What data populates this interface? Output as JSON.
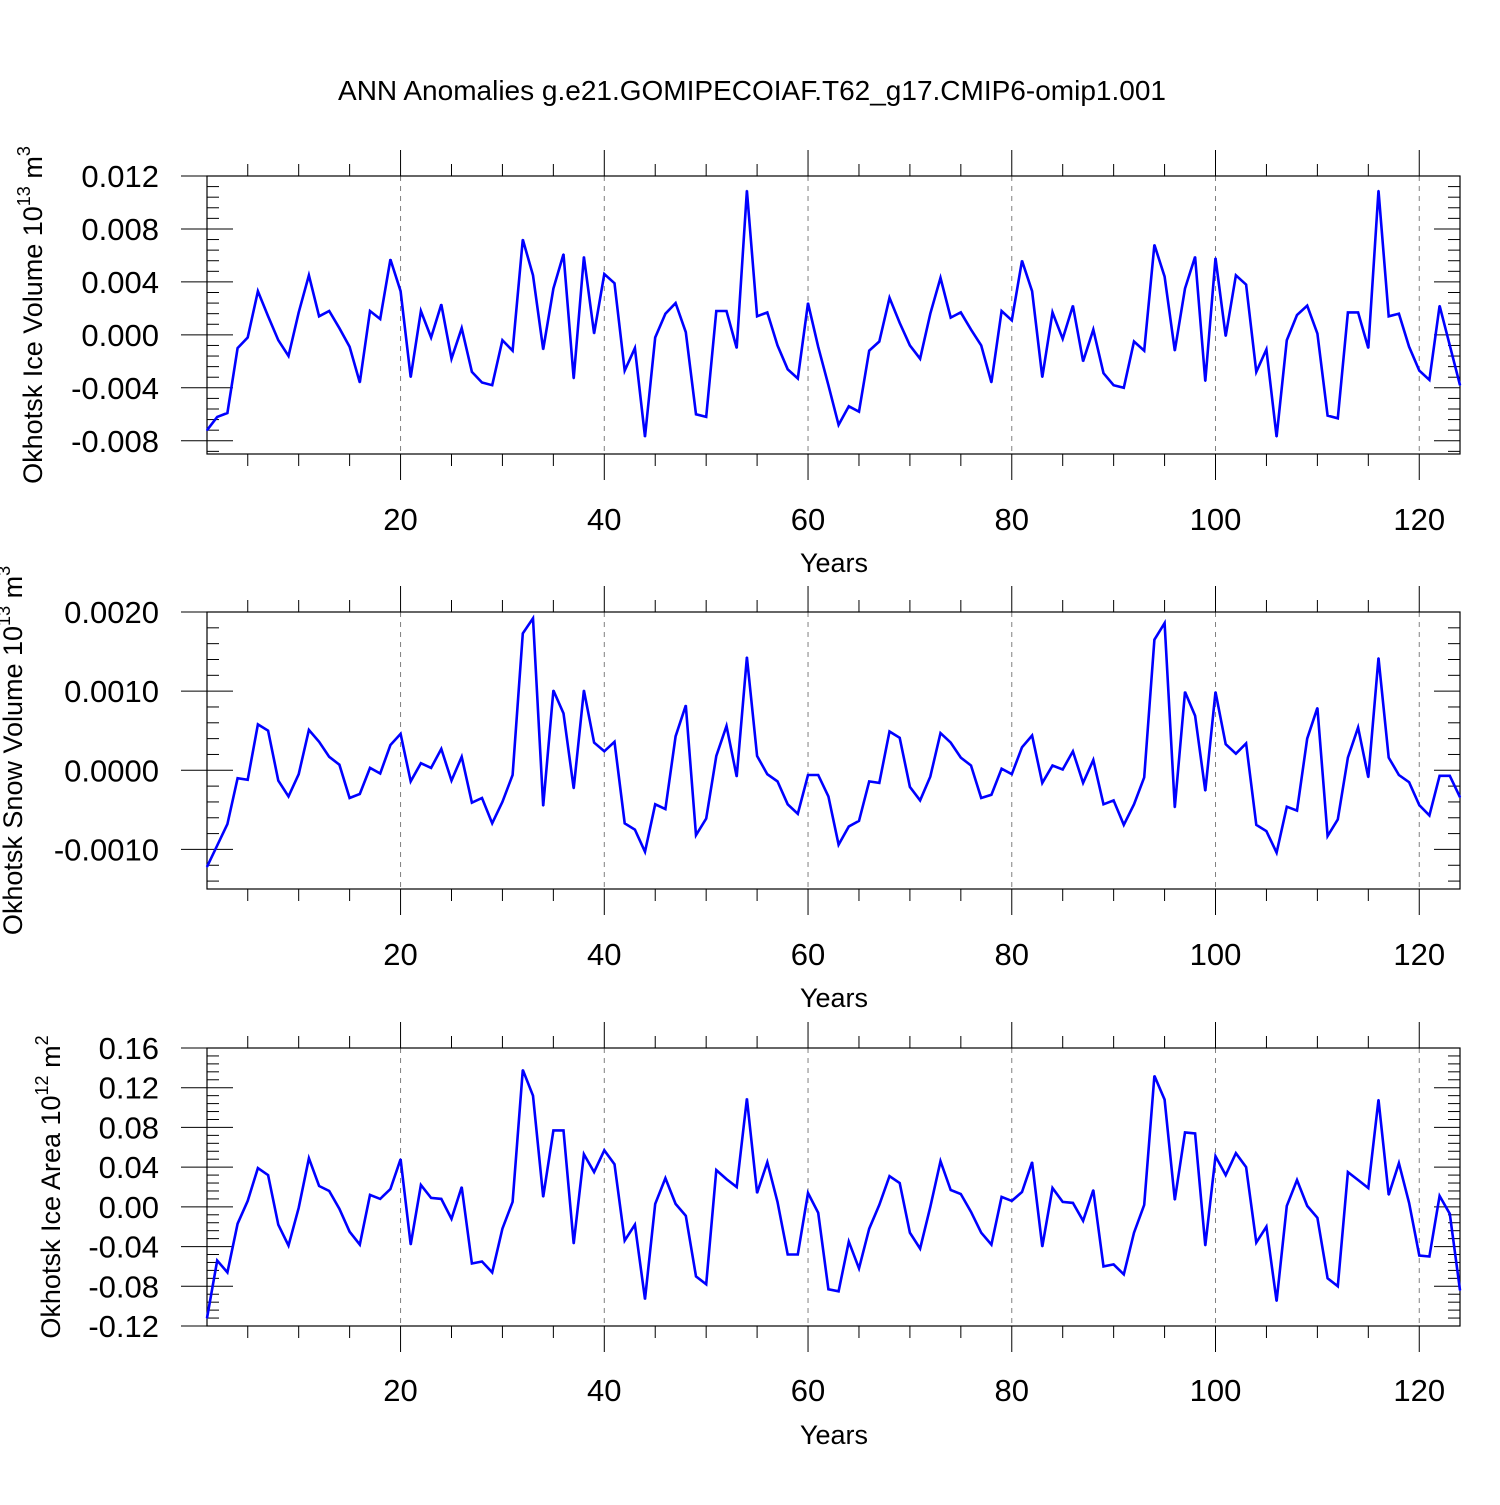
{
  "title": "ANN Anomalies g.e21.GOMIPECOIAF.T62_g17.CMIP6-omip1.001",
  "colors": {
    "series": "#0000ff",
    "axis": "#000000",
    "grid": "#808080",
    "background": "#ffffff"
  },
  "chart_data": [
    {
      "type": "line",
      "name": "ice-volume",
      "title": "",
      "xlabel": "Years",
      "ylabel": {
        "base": "Okhotsk Ice Volume 10",
        "exp": "13",
        "unit": " m",
        "unit_exp": "3"
      },
      "xlim": [
        1,
        124
      ],
      "ylim": [
        -0.009,
        0.012
      ],
      "xticks": [
        20,
        40,
        60,
        80,
        100,
        120
      ],
      "xtick_labels": [
        "20",
        "40",
        "60",
        "80",
        "100",
        "120"
      ],
      "yticks": [
        -0.008,
        -0.004,
        0.0,
        0.004,
        0.008,
        0.012
      ],
      "ytick_labels": [
        "-0.008",
        "-0.004",
        "0.000",
        "0.004",
        "0.008",
        "0.012"
      ],
      "grid": "vertical dashed at major x ticks",
      "series": [
        {
          "name": "Okhotsk Ice Volume",
          "x_start": 1,
          "values": [
            -0.0072,
            -0.0062,
            -0.0059,
            -0.001,
            -0.0002,
            0.0033,
            0.0014,
            -0.0004,
            -0.0016,
            0.0017,
            0.0045,
            0.0014,
            0.0018,
            0.0005,
            -0.0009,
            -0.0036,
            0.0018,
            0.0012,
            0.0057,
            0.0033,
            -0.0032,
            0.0018,
            -0.0002,
            0.0023,
            -0.0018,
            0.0005,
            -0.0028,
            -0.0036,
            -0.0038,
            -0.0004,
            -0.0012,
            0.0072,
            0.0045,
            -0.0011,
            0.0035,
            0.0061,
            -0.0033,
            0.0059,
            0.0001,
            0.0046,
            0.0039,
            -0.0027,
            -0.001,
            -0.0077,
            -0.0002,
            0.0016,
            0.0024,
            0.0002,
            -0.006,
            -0.0062,
            0.0018,
            0.0018,
            -0.001,
            0.0109,
            0.0014,
            0.0017,
            -0.0008,
            -0.0026,
            -0.0033,
            0.0024,
            -0.0009,
            -0.0038,
            -0.0068,
            -0.0054,
            -0.0058,
            -0.0012,
            -0.0005,
            0.0028,
            0.0009,
            -0.0008,
            -0.0018,
            0.0016,
            0.0043,
            0.0013,
            0.0017,
            0.0004,
            -0.0008,
            -0.0036,
            0.0018,
            0.0011,
            0.0056,
            0.0033,
            -0.0032,
            0.0017,
            -0.0003,
            0.0022,
            -0.002,
            0.0004,
            -0.0029,
            -0.0038,
            -0.004,
            -0.0005,
            -0.0012,
            0.0068,
            0.0044,
            -0.0012,
            0.0035,
            0.0059,
            -0.0035,
            0.0058,
            -0.0001,
            0.0045,
            0.0038,
            -0.0028,
            -0.0011,
            -0.0077,
            -0.0004,
            0.0015,
            0.0022,
            0.0001,
            -0.0061,
            -0.0063,
            0.0017,
            0.0017,
            -0.001,
            0.0109,
            0.0014,
            0.0016,
            -0.0009,
            -0.0027,
            -0.0034,
            0.0022,
            -0.0008,
            -0.0038
          ]
        }
      ]
    },
    {
      "type": "line",
      "name": "snow-volume",
      "title": "",
      "xlabel": "Years",
      "ylabel": {
        "base": "Okhotsk Snow Volume 10",
        "exp": "13",
        "unit": " m",
        "unit_exp": "3"
      },
      "xlim": [
        1,
        124
      ],
      "ylim": [
        -0.0015,
        0.002
      ],
      "xticks": [
        20,
        40,
        60,
        80,
        100,
        120
      ],
      "xtick_labels": [
        "20",
        "40",
        "60",
        "80",
        "100",
        "120"
      ],
      "yticks": [
        -0.001,
        0.0,
        0.001,
        0.002
      ],
      "ytick_labels": [
        "-0.0010",
        "0.0000",
        "0.0010",
        "0.0020"
      ],
      "grid": "vertical dashed at major x ticks",
      "series": [
        {
          "name": "Okhotsk Snow Volume",
          "x_start": 1,
          "values": [
            -0.00122,
            -0.00095,
            -0.00068,
            -0.0001,
            -0.00012,
            0.00058,
            0.0005,
            -0.00013,
            -0.00033,
            -5e-05,
            0.00051,
            0.00036,
            0.00017,
            7e-05,
            -0.00035,
            -0.0003,
            3e-05,
            -4e-05,
            0.00032,
            0.00046,
            -0.00014,
            9e-05,
            3e-05,
            0.00027,
            -0.00013,
            0.00017,
            -0.00041,
            -0.00035,
            -0.00067,
            -0.0004,
            -6e-05,
            0.00173,
            0.00192,
            -0.00045,
            0.00101,
            0.00072,
            -0.00023,
            0.00101,
            0.00035,
            0.00024,
            0.00036,
            -0.00067,
            -0.00075,
            -0.00103,
            -0.00043,
            -0.00049,
            0.00043,
            0.00082,
            -0.00082,
            -0.00061,
            0.00018,
            0.00056,
            -8e-05,
            0.00143,
            0.00018,
            -5e-05,
            -0.00014,
            -0.00043,
            -0.00055,
            -6e-05,
            -6e-05,
            -0.00033,
            -0.00094,
            -0.00071,
            -0.00064,
            -0.00014,
            -0.00016,
            0.00049,
            0.00041,
            -0.00021,
            -0.00038,
            -8e-05,
            0.00047,
            0.00035,
            0.00016,
            6e-05,
            -0.00035,
            -0.00031,
            2e-05,
            -5e-05,
            0.00029,
            0.00044,
            -0.00016,
            6e-05,
            1e-05,
            0.00024,
            -0.00016,
            0.00013,
            -0.00043,
            -0.00038,
            -0.00069,
            -0.00043,
            -9e-05,
            0.00165,
            0.00186,
            -0.00047,
            0.00099,
            0.00069,
            -0.00026,
            0.00099,
            0.00033,
            0.00021,
            0.00034,
            -0.00069,
            -0.00077,
            -0.00104,
            -0.00046,
            -0.00051,
            0.0004,
            0.00079,
            -0.00083,
            -0.00062,
            0.00016,
            0.00054,
            -9e-05,
            0.00142,
            0.00016,
            -6e-05,
            -0.00015,
            -0.00044,
            -0.00057,
            -7e-05,
            -7e-05,
            -0.00034
          ]
        }
      ]
    },
    {
      "type": "line",
      "name": "ice-area",
      "title": "",
      "xlabel": "Years",
      "ylabel": {
        "base": "Okhotsk Ice Area 10",
        "exp": "12",
        "unit": " m",
        "unit_exp": "2"
      },
      "xlim": [
        1,
        124
      ],
      "ylim": [
        -0.12,
        0.16
      ],
      "xticks": [
        20,
        40,
        60,
        80,
        100,
        120
      ],
      "xtick_labels": [
        "20",
        "40",
        "60",
        "80",
        "100",
        "120"
      ],
      "yticks": [
        -0.12,
        -0.08,
        -0.04,
        0.0,
        0.04,
        0.08,
        0.12,
        0.16
      ],
      "ytick_labels": [
        "-0.12",
        "-0.08",
        "-0.04",
        "0.00",
        "0.04",
        "0.08",
        "0.12",
        "0.16"
      ],
      "grid": "vertical dashed at major x ticks",
      "series": [
        {
          "name": "Okhotsk Ice Area",
          "x_start": 1,
          "values": [
            -0.112,
            -0.054,
            -0.066,
            -0.017,
            0.006,
            0.039,
            0.032,
            -0.018,
            -0.039,
            -0.001,
            0.049,
            0.021,
            0.016,
            -0.002,
            -0.025,
            -0.038,
            0.012,
            0.008,
            0.018,
            0.048,
            -0.038,
            0.022,
            0.009,
            0.008,
            -0.012,
            0.02,
            -0.057,
            -0.055,
            -0.066,
            -0.022,
            0.005,
            0.138,
            0.112,
            0.01,
            0.077,
            0.077,
            -0.037,
            0.053,
            0.035,
            0.057,
            0.043,
            -0.034,
            -0.018,
            -0.093,
            0.003,
            0.029,
            0.003,
            -0.009,
            -0.07,
            -0.078,
            0.037,
            0.028,
            0.02,
            0.109,
            0.014,
            0.045,
            0.005,
            -0.048,
            -0.048,
            0.014,
            -0.006,
            -0.083,
            -0.085,
            -0.035,
            -0.062,
            -0.022,
            0.002,
            0.031,
            0.024,
            -0.026,
            -0.042,
            0.0,
            0.046,
            0.017,
            0.013,
            -0.005,
            -0.026,
            -0.038,
            0.01,
            0.006,
            0.015,
            0.045,
            -0.04,
            0.019,
            0.005,
            0.004,
            -0.014,
            0.017,
            -0.06,
            -0.058,
            -0.068,
            -0.026,
            0.002,
            0.132,
            0.108,
            0.007,
            0.075,
            0.074,
            -0.039,
            0.051,
            0.032,
            0.054,
            0.04,
            -0.036,
            -0.02,
            -0.095,
            0.001,
            0.027,
            0.001,
            -0.011,
            -0.072,
            -0.08,
            0.035,
            0.027,
            0.019,
            0.108,
            0.012,
            0.044,
            0.004,
            -0.049,
            -0.05,
            0.011,
            -0.007,
            -0.084
          ]
        }
      ]
    }
  ]
}
